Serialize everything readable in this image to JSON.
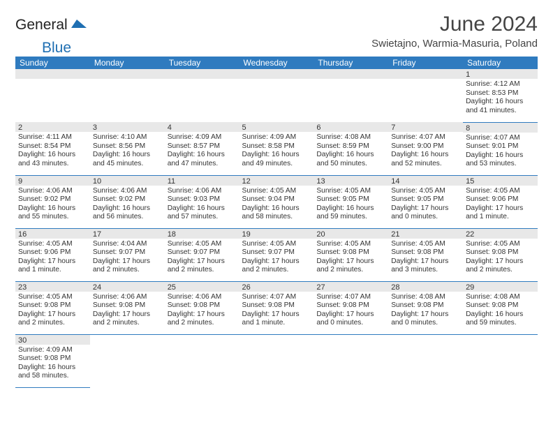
{
  "brand": {
    "name1": "General",
    "name2": "Blue",
    "accent": "#1f6fb2"
  },
  "title": "June 2024",
  "location": "Swietajno, Warmia-Masuria, Poland",
  "header_bg": "#2f7bbf",
  "day_headers": [
    "Sunday",
    "Monday",
    "Tuesday",
    "Wednesday",
    "Thursday",
    "Friday",
    "Saturday"
  ],
  "weeks": [
    [
      null,
      null,
      null,
      null,
      null,
      null,
      {
        "n": "1",
        "sunrise": "4:12 AM",
        "sunset": "8:53 PM",
        "daylight": "16 hours and 41 minutes."
      }
    ],
    [
      {
        "n": "2",
        "sunrise": "4:11 AM",
        "sunset": "8:54 PM",
        "daylight": "16 hours and 43 minutes."
      },
      {
        "n": "3",
        "sunrise": "4:10 AM",
        "sunset": "8:56 PM",
        "daylight": "16 hours and 45 minutes."
      },
      {
        "n": "4",
        "sunrise": "4:09 AM",
        "sunset": "8:57 PM",
        "daylight": "16 hours and 47 minutes."
      },
      {
        "n": "5",
        "sunrise": "4:09 AM",
        "sunset": "8:58 PM",
        "daylight": "16 hours and 49 minutes."
      },
      {
        "n": "6",
        "sunrise": "4:08 AM",
        "sunset": "8:59 PM",
        "daylight": "16 hours and 50 minutes."
      },
      {
        "n": "7",
        "sunrise": "4:07 AM",
        "sunset": "9:00 PM",
        "daylight": "16 hours and 52 minutes."
      },
      {
        "n": "8",
        "sunrise": "4:07 AM",
        "sunset": "9:01 PM",
        "daylight": "16 hours and 53 minutes."
      }
    ],
    [
      {
        "n": "9",
        "sunrise": "4:06 AM",
        "sunset": "9:02 PM",
        "daylight": "16 hours and 55 minutes."
      },
      {
        "n": "10",
        "sunrise": "4:06 AM",
        "sunset": "9:02 PM",
        "daylight": "16 hours and 56 minutes."
      },
      {
        "n": "11",
        "sunrise": "4:06 AM",
        "sunset": "9:03 PM",
        "daylight": "16 hours and 57 minutes."
      },
      {
        "n": "12",
        "sunrise": "4:05 AM",
        "sunset": "9:04 PM",
        "daylight": "16 hours and 58 minutes."
      },
      {
        "n": "13",
        "sunrise": "4:05 AM",
        "sunset": "9:05 PM",
        "daylight": "16 hours and 59 minutes."
      },
      {
        "n": "14",
        "sunrise": "4:05 AM",
        "sunset": "9:05 PM",
        "daylight": "17 hours and 0 minutes."
      },
      {
        "n": "15",
        "sunrise": "4:05 AM",
        "sunset": "9:06 PM",
        "daylight": "17 hours and 1 minute."
      }
    ],
    [
      {
        "n": "16",
        "sunrise": "4:05 AM",
        "sunset": "9:06 PM",
        "daylight": "17 hours and 1 minute."
      },
      {
        "n": "17",
        "sunrise": "4:04 AM",
        "sunset": "9:07 PM",
        "daylight": "17 hours and 2 minutes."
      },
      {
        "n": "18",
        "sunrise": "4:05 AM",
        "sunset": "9:07 PM",
        "daylight": "17 hours and 2 minutes."
      },
      {
        "n": "19",
        "sunrise": "4:05 AM",
        "sunset": "9:07 PM",
        "daylight": "17 hours and 2 minutes."
      },
      {
        "n": "20",
        "sunrise": "4:05 AM",
        "sunset": "9:08 PM",
        "daylight": "17 hours and 2 minutes."
      },
      {
        "n": "21",
        "sunrise": "4:05 AM",
        "sunset": "9:08 PM",
        "daylight": "17 hours and 3 minutes."
      },
      {
        "n": "22",
        "sunrise": "4:05 AM",
        "sunset": "9:08 PM",
        "daylight": "17 hours and 2 minutes."
      }
    ],
    [
      {
        "n": "23",
        "sunrise": "4:05 AM",
        "sunset": "9:08 PM",
        "daylight": "17 hours and 2 minutes."
      },
      {
        "n": "24",
        "sunrise": "4:06 AM",
        "sunset": "9:08 PM",
        "daylight": "17 hours and 2 minutes."
      },
      {
        "n": "25",
        "sunrise": "4:06 AM",
        "sunset": "9:08 PM",
        "daylight": "17 hours and 2 minutes."
      },
      {
        "n": "26",
        "sunrise": "4:07 AM",
        "sunset": "9:08 PM",
        "daylight": "17 hours and 1 minute."
      },
      {
        "n": "27",
        "sunrise": "4:07 AM",
        "sunset": "9:08 PM",
        "daylight": "17 hours and 0 minutes."
      },
      {
        "n": "28",
        "sunrise": "4:08 AM",
        "sunset": "9:08 PM",
        "daylight": "17 hours and 0 minutes."
      },
      {
        "n": "29",
        "sunrise": "4:08 AM",
        "sunset": "9:08 PM",
        "daylight": "16 hours and 59 minutes."
      }
    ],
    [
      {
        "n": "30",
        "sunrise": "4:09 AM",
        "sunset": "9:08 PM",
        "daylight": "16 hours and 58 minutes."
      },
      null,
      null,
      null,
      null,
      null,
      null
    ]
  ],
  "labels": {
    "sunrise": "Sunrise:",
    "sunset": "Sunset:",
    "daylight": "Daylight:"
  }
}
